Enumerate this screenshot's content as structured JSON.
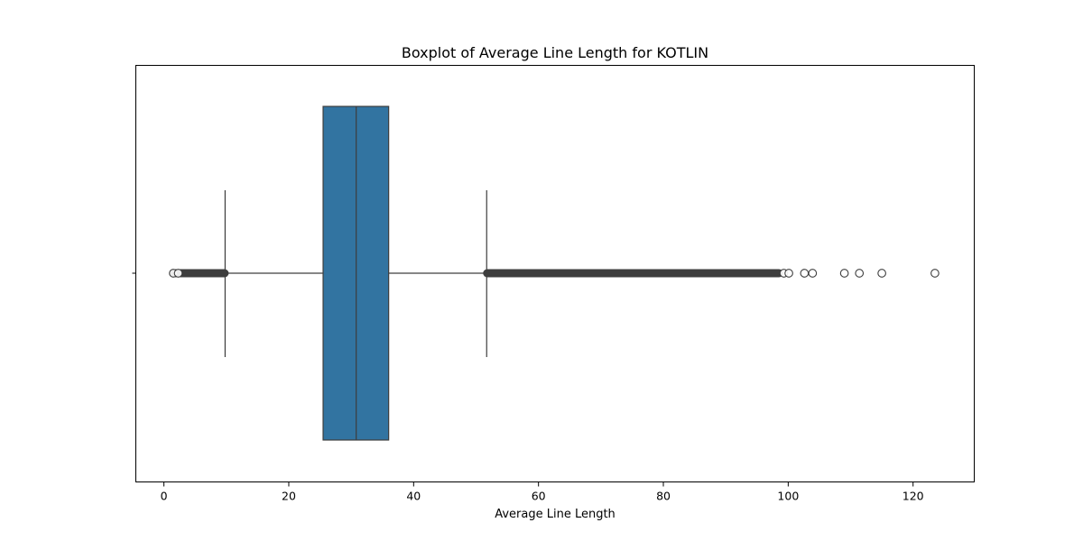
{
  "chart_data": {
    "type": "boxplot",
    "orientation": "horizontal",
    "title": "Boxplot of Average Line Length for KOTLIN",
    "xlabel": "Average Line Length",
    "ylabel": "",
    "xlim": [
      -4.5,
      129.8
    ],
    "xticks": [
      0,
      20,
      40,
      60,
      80,
      100,
      120
    ],
    "box": {
      "q1": 25.5,
      "median": 30.8,
      "q3": 36.0,
      "whisker_low": 9.8,
      "whisker_high": 51.7
    },
    "outlier_bands": [
      [
        1.5,
        9.8
      ],
      [
        51.7,
        98.6
      ]
    ],
    "outliers": [
      1.5,
      2.3,
      99.3,
      100.1,
      102.6,
      103.9,
      109.0,
      111.4,
      115.0,
      123.5
    ],
    "grid": false,
    "colors": {
      "box_fill": "#3274a1",
      "line": "#3d3d3d",
      "outlier_band": "#3d3d3d"
    }
  }
}
